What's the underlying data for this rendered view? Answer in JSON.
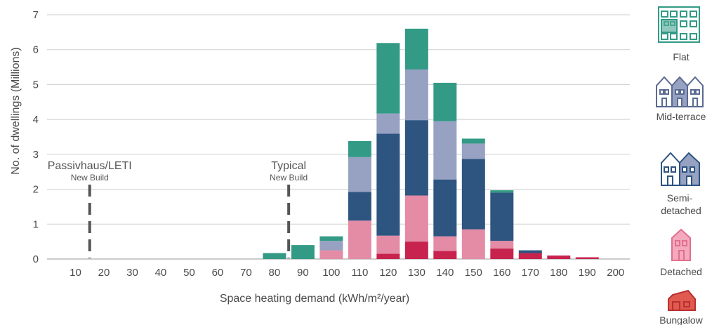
{
  "chart_data": {
    "type": "bar",
    "stacked": true,
    "xlabel": "Space heating demand (kWh/m²/year)",
    "ylabel": "No. of dwellings (Millions)",
    "ylim": [
      0,
      7
    ],
    "yticks": [
      "0",
      "1",
      "2",
      "3",
      "4",
      "5",
      "6",
      "7"
    ],
    "categories": [
      "10",
      "20",
      "30",
      "40",
      "50",
      "60",
      "70",
      "80",
      "90",
      "100",
      "110",
      "120",
      "130",
      "140",
      "150",
      "160",
      "170",
      "180",
      "190",
      "200"
    ],
    "grid": "horizontal",
    "series": [
      {
        "name": "Bungalow",
        "color": "#c8234f",
        "values": [
          0,
          0,
          0,
          0,
          0,
          0,
          0,
          0,
          0,
          0,
          0,
          0.15,
          0.5,
          0.23,
          0,
          0.3,
          0.17,
          0.1,
          0.05,
          0
        ]
      },
      {
        "name": "Detached",
        "color": "#e48ba6",
        "values": [
          0,
          0,
          0,
          0,
          0,
          0,
          0,
          0,
          0,
          0.25,
          1.1,
          0.52,
          1.32,
          0.42,
          0.85,
          0.22,
          0,
          0,
          0,
          0
        ]
      },
      {
        "name": "Semi-detached",
        "color": "#2e5480",
        "values": [
          0,
          0,
          0,
          0,
          0,
          0,
          0,
          0,
          0,
          0,
          0.82,
          2.92,
          2.16,
          1.63,
          2.02,
          1.38,
          0.08,
          0,
          0,
          0
        ]
      },
      {
        "name": "Mid-terrace",
        "color": "#97a1c2",
        "values": [
          0,
          0,
          0,
          0,
          0,
          0,
          0,
          0,
          0,
          0.27,
          1.0,
          0.58,
          1.45,
          1.67,
          0.44,
          0,
          0,
          0,
          0,
          0
        ]
      },
      {
        "name": "Flat",
        "color": "#339a86",
        "values": [
          0,
          0,
          0,
          0,
          0,
          0,
          0,
          0.17,
          0.4,
          0.13,
          0.46,
          2.02,
          1.17,
          1.1,
          0.14,
          0.07,
          0,
          0,
          0,
          0
        ]
      }
    ],
    "annotations": [
      {
        "label": "Passivhaus/LETI",
        "sublabel": "New Build",
        "x": 15
      },
      {
        "label": "Typical",
        "sublabel": "New Build",
        "x": 85
      }
    ]
  },
  "legend": {
    "items": [
      {
        "label": "Flat",
        "icon": "flat-icon"
      },
      {
        "label": "Mid-terrace",
        "icon": "mid-terrace-icon"
      },
      {
        "label": "Semi-\ndetached",
        "icon": "semi-detached-icon"
      },
      {
        "label": "Detached",
        "icon": "detached-icon"
      },
      {
        "label": "Bungalow",
        "icon": "bungalow-icon"
      }
    ]
  }
}
